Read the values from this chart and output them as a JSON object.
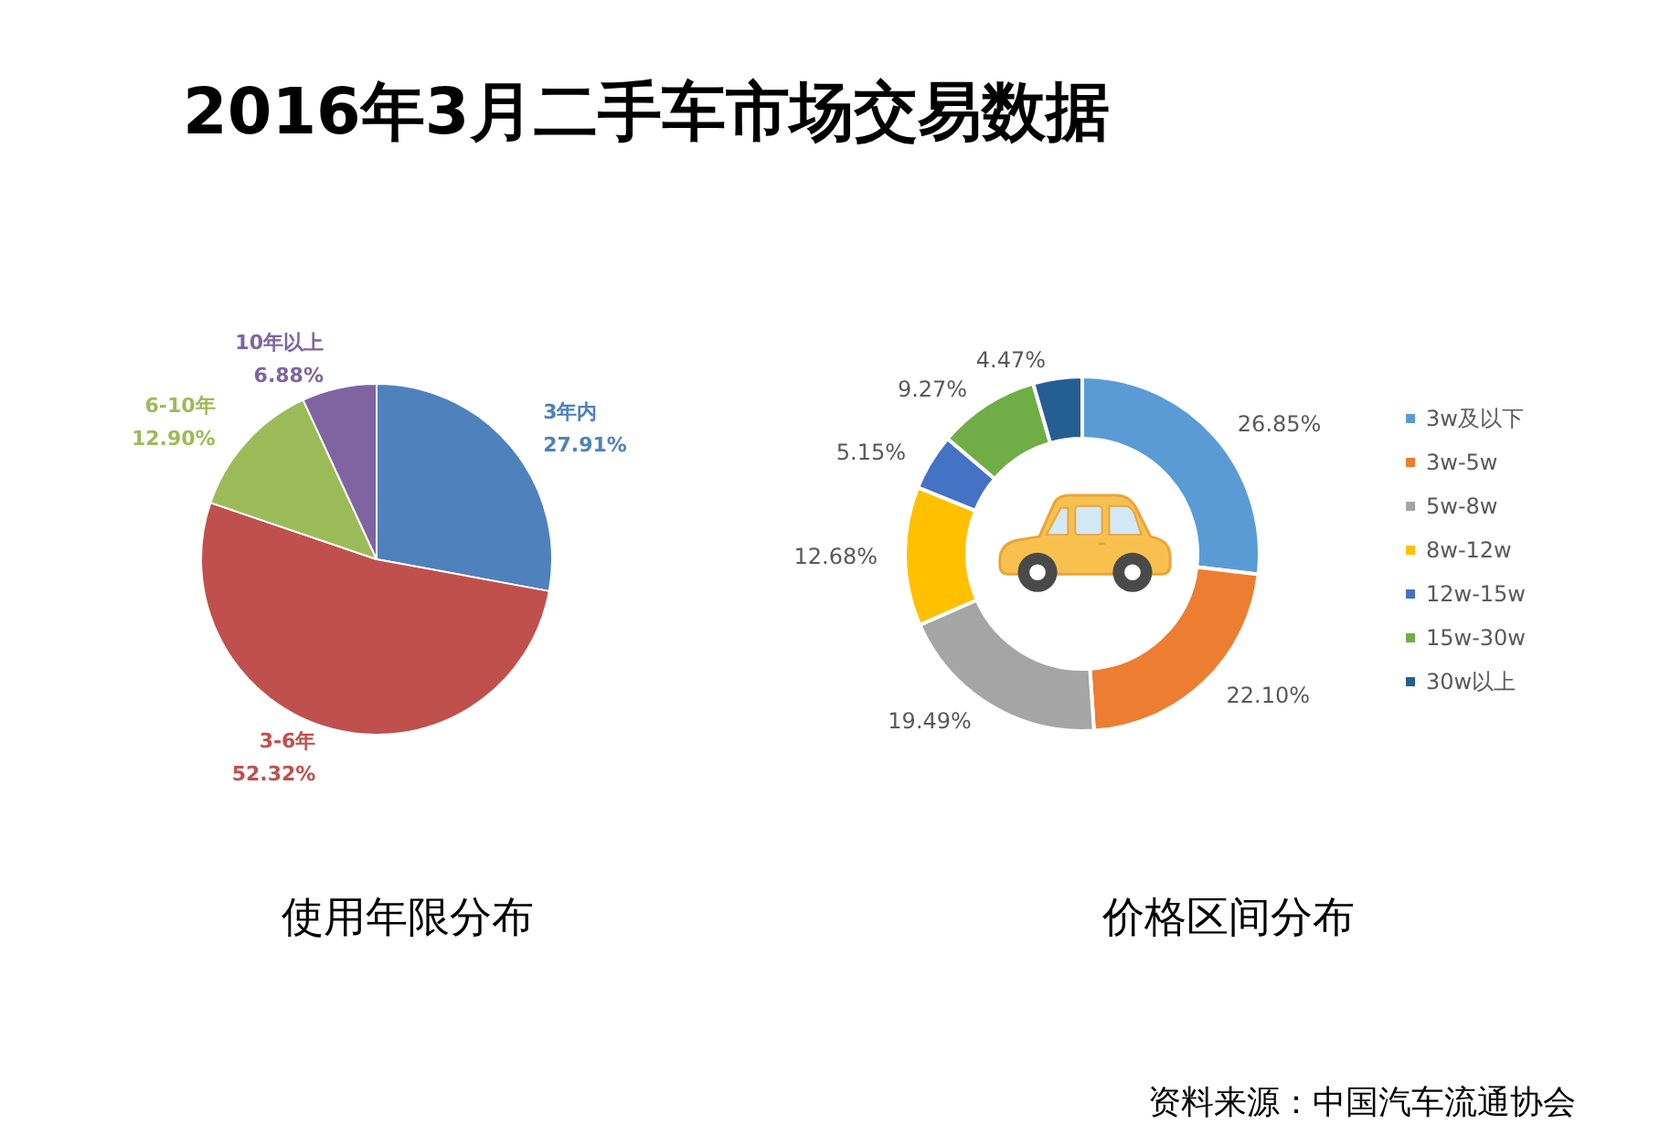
{
  "chart_data": [
    {
      "type": "pie",
      "title": "使用年限分布",
      "categories": [
        "3年内",
        "3-6年",
        "6-10年",
        "10年以上"
      ],
      "values": [
        27.91,
        52.32,
        12.9,
        6.88
      ],
      "value_labels": [
        "27.91%",
        "52.32%",
        "12.90%",
        "6.88%"
      ],
      "colors": [
        "#4f81bd",
        "#c0504d",
        "#9bbb59",
        "#8064a2"
      ],
      "annotations": [
        "2016年3月二手车市场交易数据"
      ]
    },
    {
      "type": "donut",
      "title": "价格区间分布",
      "categories": [
        "3w及以下",
        "3w-5w",
        "5w-8w",
        "8w-12w",
        "12w-15w",
        "15w-30w",
        "30w以上"
      ],
      "values": [
        26.85,
        22.1,
        19.49,
        12.68,
        5.15,
        9.27,
        4.47
      ],
      "value_labels": [
        "26.85%",
        "22.10%",
        "19.49%",
        "12.68%",
        "5.15%",
        "9.27%",
        "4.47%"
      ],
      "colors": [
        "#5b9bd5",
        "#ed7d31",
        "#a5a5a5",
        "#ffc000",
        "#4472c4",
        "#70ad47",
        "#255e91"
      ],
      "legend": "right",
      "annotations": [
        "资料来源：中国汽车流通协会"
      ]
    }
  ]
}
